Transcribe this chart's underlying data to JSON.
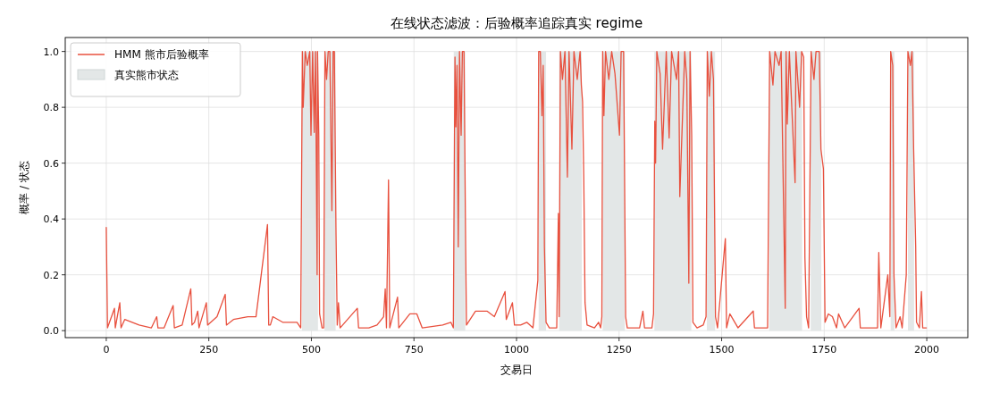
{
  "chart_data": {
    "type": "line",
    "title": "在线状态滤波：后验概率追踪真实 regime",
    "xlabel": "交易日",
    "ylabel": "概率 / 状态",
    "xlim": [
      -100,
      2100
    ],
    "xticks": [
      0,
      250,
      500,
      750,
      1000,
      1250,
      1500,
      1750,
      2000
    ],
    "ylim": [
      -0.025,
      1.05
    ],
    "yticks": [
      {
        "value": 0,
        "label": "0.0"
      },
      {
        "value": 0.2,
        "label": "0.2"
      },
      {
        "value": 0.4,
        "label": "0.4"
      },
      {
        "value": 0.6,
        "label": "0.6"
      },
      {
        "value": 0.8,
        "label": "0.8"
      },
      {
        "value": 1,
        "label": "1.0"
      }
    ],
    "grid": true,
    "legend": "top left",
    "series": [
      {
        "name": "真实熊市状态",
        "type": "area",
        "color": "#e3e7e7",
        "x": [
          0,
          477,
          477,
          516,
          516,
          532,
          532,
          559,
          559,
          847,
          847,
          875,
          875,
          1054,
          1054,
          1072,
          1072,
          1104,
          1104,
          1159,
          1159,
          1210,
          1210,
          1264,
          1264,
          1336,
          1336,
          1426,
          1426,
          1464,
          1464,
          1484,
          1484,
          1616,
          1616,
          1696,
          1696,
          1717,
          1717,
          1743,
          1743,
          1912,
          1912,
          1921,
          1921,
          1954,
          1954,
          1969,
          1969,
          1999
        ],
        "values": [
          0,
          0,
          1,
          1,
          0,
          0,
          1,
          1,
          0,
          0,
          1,
          1,
          0,
          0,
          1,
          1,
          0,
          0,
          1,
          1,
          0,
          0,
          1,
          1,
          0,
          0,
          1,
          1,
          0,
          0,
          1,
          1,
          0,
          0,
          1,
          1,
          0,
          0,
          1,
          1,
          0,
          0,
          1,
          1,
          0,
          0,
          1,
          1,
          0,
          0
        ]
      },
      {
        "name": "HMM 熊市后验概率",
        "color": "#e8503e",
        "x": [
          0,
          3,
          20,
          22,
          33,
          36,
          45,
          80,
          110,
          123,
          126,
          141,
          163,
          166,
          185,
          206,
          209,
          215,
          223,
          226,
          244,
          247,
          270,
          290,
          293,
          310,
          345,
          365,
          393,
          396,
          400,
          406,
          430,
          465,
          474,
          478,
          480,
          485,
          490,
          496,
          499,
          503,
          507,
          510,
          514,
          515,
          518,
          520,
          526,
          530,
          533,
          537,
          541,
          545,
          550,
          553,
          556,
          560,
          563,
          566,
          570,
          612,
          615,
          640,
          660,
          676,
          680,
          683,
          688,
          691,
          710,
          713,
          740,
          757,
          770,
          820,
          840,
          846,
          850,
          852,
          855,
          858,
          861,
          865,
          868,
          872,
          876,
          878,
          900,
          928,
          946,
          972,
          975,
          990,
          995,
          1010,
          1025,
          1040,
          1052,
          1054,
          1058,
          1062,
          1065,
          1068,
          1072,
          1080,
          1098,
          1102,
          1104,
          1107,
          1112,
          1118,
          1124,
          1128,
          1135,
          1140,
          1148,
          1155,
          1158,
          1161,
          1164,
          1167,
          1172,
          1190,
          1200,
          1205,
          1208,
          1210,
          1213,
          1217,
          1225,
          1232,
          1240,
          1251,
          1255,
          1261,
          1266,
          1270,
          1300,
          1308,
          1312,
          1330,
          1334,
          1337,
          1339,
          1342,
          1350,
          1356,
          1365,
          1372,
          1378,
          1390,
          1395,
          1398,
          1410,
          1415,
          1420,
          1423,
          1427,
          1430,
          1440,
          1455,
          1462,
          1465,
          1470,
          1475,
          1480,
          1485,
          1490,
          1509,
          1512,
          1520,
          1540,
          1577,
          1580,
          1612,
          1617,
          1625,
          1630,
          1640,
          1645,
          1655,
          1657,
          1660,
          1665,
          1679,
          1681,
          1690,
          1695,
          1700,
          1703,
          1707,
          1712,
          1718,
          1725,
          1730,
          1738,
          1742,
          1748,
          1752,
          1760,
          1770,
          1780,
          1785,
          1800,
          1835,
          1838,
          1880,
          1883,
          1888,
          1905,
          1910,
          1912,
          1917,
          1920,
          1925,
          1935,
          1940,
          1950,
          1954,
          1960,
          1964,
          1968,
          1973,
          1975,
          1982,
          1987,
          1990,
          1999
        ],
        "values": [
          0.37,
          0.01,
          0.08,
          0.01,
          0.1,
          0.01,
          0.04,
          0.02,
          0.01,
          0.05,
          0.01,
          0.01,
          0.09,
          0.01,
          0.02,
          0.15,
          0.02,
          0.03,
          0.07,
          0.01,
          0.1,
          0.02,
          0.05,
          0.13,
          0.02,
          0.04,
          0.05,
          0.05,
          0.38,
          0.02,
          0.02,
          0.05,
          0.03,
          0.03,
          0.01,
          1.0,
          0.8,
          1.0,
          0.95,
          1.0,
          0.7,
          1.0,
          0.71,
          1.0,
          0.2,
          1.0,
          0.7,
          0.06,
          0.01,
          0.01,
          1.0,
          0.9,
          1.0,
          1.0,
          0.43,
          1.0,
          1.0,
          0.35,
          0.02,
          0.1,
          0.01,
          0.08,
          0.01,
          0.01,
          0.02,
          0.05,
          0.15,
          0.01,
          0.54,
          0.01,
          0.12,
          0.01,
          0.06,
          0.06,
          0.01,
          0.02,
          0.03,
          0.01,
          0.98,
          0.73,
          0.95,
          0.3,
          1.0,
          0.7,
          1.0,
          1.0,
          0.3,
          0.02,
          0.07,
          0.07,
          0.05,
          0.14,
          0.04,
          0.1,
          0.02,
          0.02,
          0.03,
          0.01,
          0.18,
          1.0,
          1.0,
          0.77,
          0.95,
          0.3,
          0.03,
          0.01,
          0.01,
          0.42,
          0.05,
          1.0,
          0.9,
          1.0,
          0.55,
          1.0,
          0.65,
          1.0,
          0.9,
          1.0,
          0.88,
          0.82,
          0.54,
          0.1,
          0.02,
          0.01,
          0.03,
          0.01,
          0.05,
          1.0,
          0.77,
          1.0,
          0.9,
          1.0,
          0.92,
          0.7,
          1.0,
          1.0,
          0.05,
          0.01,
          0.01,
          0.07,
          0.01,
          0.01,
          0.06,
          0.75,
          0.6,
          1.0,
          0.92,
          0.65,
          1.0,
          0.69,
          1.0,
          0.9,
          1.0,
          0.48,
          1.0,
          0.9,
          0.17,
          1.0,
          0.7,
          0.03,
          0.01,
          0.02,
          0.05,
          1.0,
          0.84,
          1.0,
          0.9,
          0.05,
          0.01,
          0.33,
          0.01,
          0.06,
          0.01,
          0.07,
          0.01,
          0.01,
          1.0,
          0.88,
          1.0,
          0.95,
          1.0,
          0.08,
          1.0,
          0.74,
          1.0,
          0.53,
          1.0,
          0.8,
          1.0,
          0.98,
          0.26,
          0.05,
          0.01,
          1.0,
          0.9,
          1.0,
          1.0,
          0.65,
          0.58,
          0.03,
          0.06,
          0.05,
          0.01,
          0.06,
          0.01,
          0.08,
          0.01,
          0.01,
          0.28,
          0.01,
          0.2,
          0.05,
          1.0,
          0.95,
          0.2,
          0.01,
          0.05,
          0.01,
          0.2,
          1.0,
          0.95,
          1.0,
          0.65,
          0.3,
          0.03,
          0.01,
          0.14,
          0.01,
          0.01
        ]
      }
    ]
  }
}
